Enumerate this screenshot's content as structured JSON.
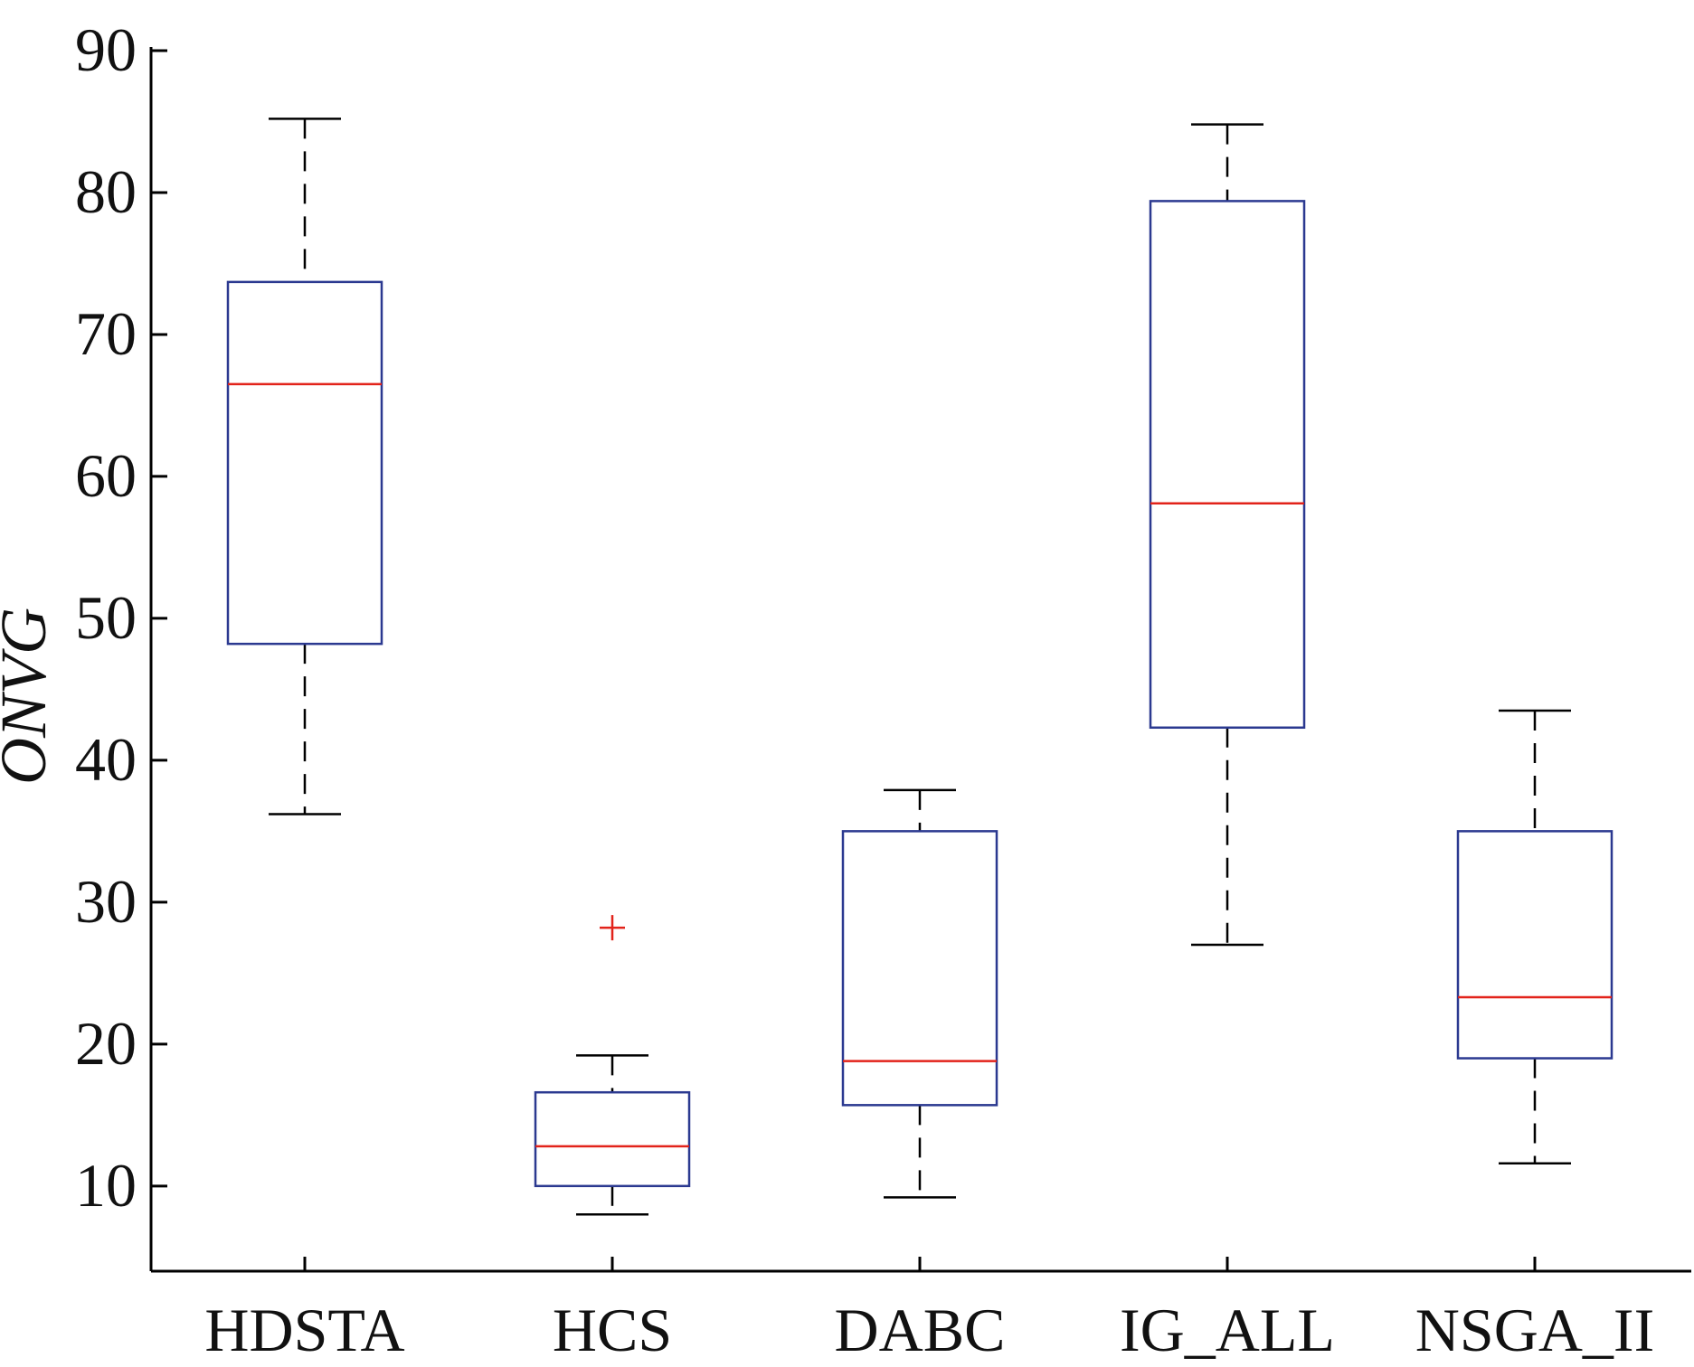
{
  "chart_data": {
    "type": "box",
    "title": "",
    "xlabel": "",
    "ylabel": "ONVG",
    "ylim": [
      4,
      90
    ],
    "yticks": [
      10,
      20,
      30,
      40,
      50,
      60,
      70,
      80,
      90
    ],
    "grid": false,
    "categories": [
      "HDSTA",
      "HCS",
      "DABC",
      "IG_ALL",
      "NSGA_II"
    ],
    "boxes": [
      {
        "name": "HDSTA",
        "min": 36.2,
        "q1": 48.2,
        "median": 66.5,
        "q3": 73.7,
        "max": 85.2,
        "outliers": []
      },
      {
        "name": "HCS",
        "min": 8.0,
        "q1": 10.0,
        "median": 12.8,
        "q3": 16.6,
        "max": 19.2,
        "outliers": [
          28.2
        ]
      },
      {
        "name": "DABC",
        "min": 9.2,
        "q1": 15.7,
        "median": 18.8,
        "q3": 35.0,
        "max": 37.9,
        "outliers": []
      },
      {
        "name": "IG_ALL",
        "min": 27.0,
        "q1": 42.3,
        "median": 58.1,
        "q3": 79.4,
        "max": 84.8,
        "outliers": []
      },
      {
        "name": "NSGA_II",
        "min": 11.6,
        "q1": 19.0,
        "median": 23.3,
        "q3": 35.0,
        "max": 43.5,
        "outliers": []
      }
    ],
    "colors": {
      "box": "#2b3990",
      "median": "#e2231a",
      "whisker": "#000000",
      "outlier": "#e2231a"
    }
  }
}
